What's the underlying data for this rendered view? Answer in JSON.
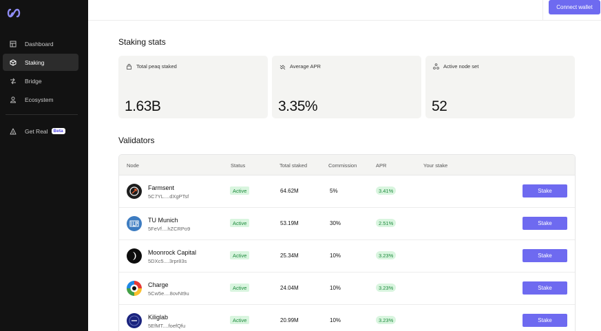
{
  "topbar": {
    "connect_label": "Connect wallet"
  },
  "sidebar": {
    "items": [
      {
        "label": "Dashboard",
        "icon": "dashboard-icon",
        "active": false
      },
      {
        "label": "Staking",
        "icon": "cube-icon",
        "active": true
      },
      {
        "label": "Bridge",
        "icon": "bridge-icon",
        "active": false
      },
      {
        "label": "Ecosystem",
        "icon": "person-icon",
        "active": false
      }
    ],
    "get_real": {
      "label": "Get Real",
      "badge": "Beta",
      "icon": "triangle-icon"
    }
  },
  "stats": {
    "title": "Staking stats",
    "cards": [
      {
        "label": "Total peaq staked",
        "value": "1.63B",
        "icon": "lock-icon"
      },
      {
        "label": "Average APR",
        "value": "3.35%",
        "icon": "wave-icon"
      },
      {
        "label": "Active node set",
        "value": "52",
        "icon": "nodes-icon"
      }
    ]
  },
  "validators": {
    "title": "Validators",
    "headers": [
      "Node",
      "Status",
      "Total staked",
      "Commission",
      "APR",
      "Your stake"
    ],
    "rows": [
      {
        "name": "Farmsent",
        "address": "5C7YL....dXgPTsf",
        "status": "Active",
        "total_staked": "64.62M",
        "commission": "5%",
        "apr": "3.41%",
        "action": "Stake",
        "avatar": "farmsent-logo"
      },
      {
        "name": "TU Munich",
        "address": "5FeVf....hZCRPo9",
        "status": "Active",
        "total_staked": "53.19M",
        "commission": "30%",
        "apr": "2.51%",
        "action": "Stake",
        "avatar": "tum-logo"
      },
      {
        "name": "Moonrock Capital",
        "address": "5DXc5....3rpr83s",
        "status": "Active",
        "total_staked": "25.34M",
        "commission": "10%",
        "apr": "3.23%",
        "action": "Stake",
        "avatar": "moonrock-logo"
      },
      {
        "name": "Charge",
        "address": "5Cw5e....8ovNt9u",
        "status": "Active",
        "total_staked": "24.04M",
        "commission": "10%",
        "apr": "3.23%",
        "action": "Stake",
        "avatar": "charge-logo"
      },
      {
        "name": "Kiliglab",
        "address": "5EfMT....foefQfu",
        "status": "Active",
        "total_staked": "20.99M",
        "commission": "10%",
        "apr": "3.23%",
        "action": "Stake",
        "avatar": "kiliglab-logo"
      }
    ]
  },
  "colors": {
    "accent": "#6e6af0",
    "sidebar_bg": "#121212",
    "status_green": "#1d8a3c",
    "status_green_bg": "#d9f5df"
  }
}
